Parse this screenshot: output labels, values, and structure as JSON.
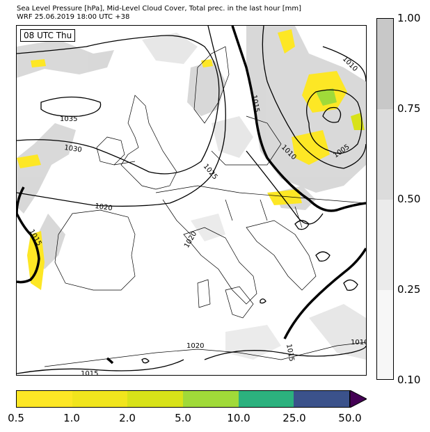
{
  "header": {
    "title_line1": "Sea Level Pressure [hPa], Mid-Level Cloud Cover, Total prec. in the last hour [mm]",
    "title_line2": "WRF 25.06.2019 18:00 UTC +38"
  },
  "map": {
    "time_label": "08 UTC Thu",
    "isobar_labels": [
      "1035",
      "1030",
      "1025",
      "1020",
      "1015",
      "1010",
      "1005",
      "1020",
      "1015",
      "1015",
      "1010",
      "1015",
      "1010",
      "1020"
    ]
  },
  "cloud_colorbar": {
    "ticks": [
      "1.00",
      "0.75",
      "0.50",
      "0.25",
      "0.10"
    ],
    "colors": [
      "#c8c8c8",
      "#dcdcdc",
      "#ebebeb",
      "#f7f7f7"
    ]
  },
  "precip_colorbar": {
    "ticks": [
      "0.5",
      "1.0",
      "2.0",
      "5.0",
      "10.0",
      "25.0",
      "50.0"
    ],
    "colors": [
      "#fde725",
      "#f1e51d",
      "#d8e219",
      "#a0da39",
      "#2cb17e",
      "#3b528b",
      "#440154"
    ],
    "extend_color": "#440154"
  }
}
